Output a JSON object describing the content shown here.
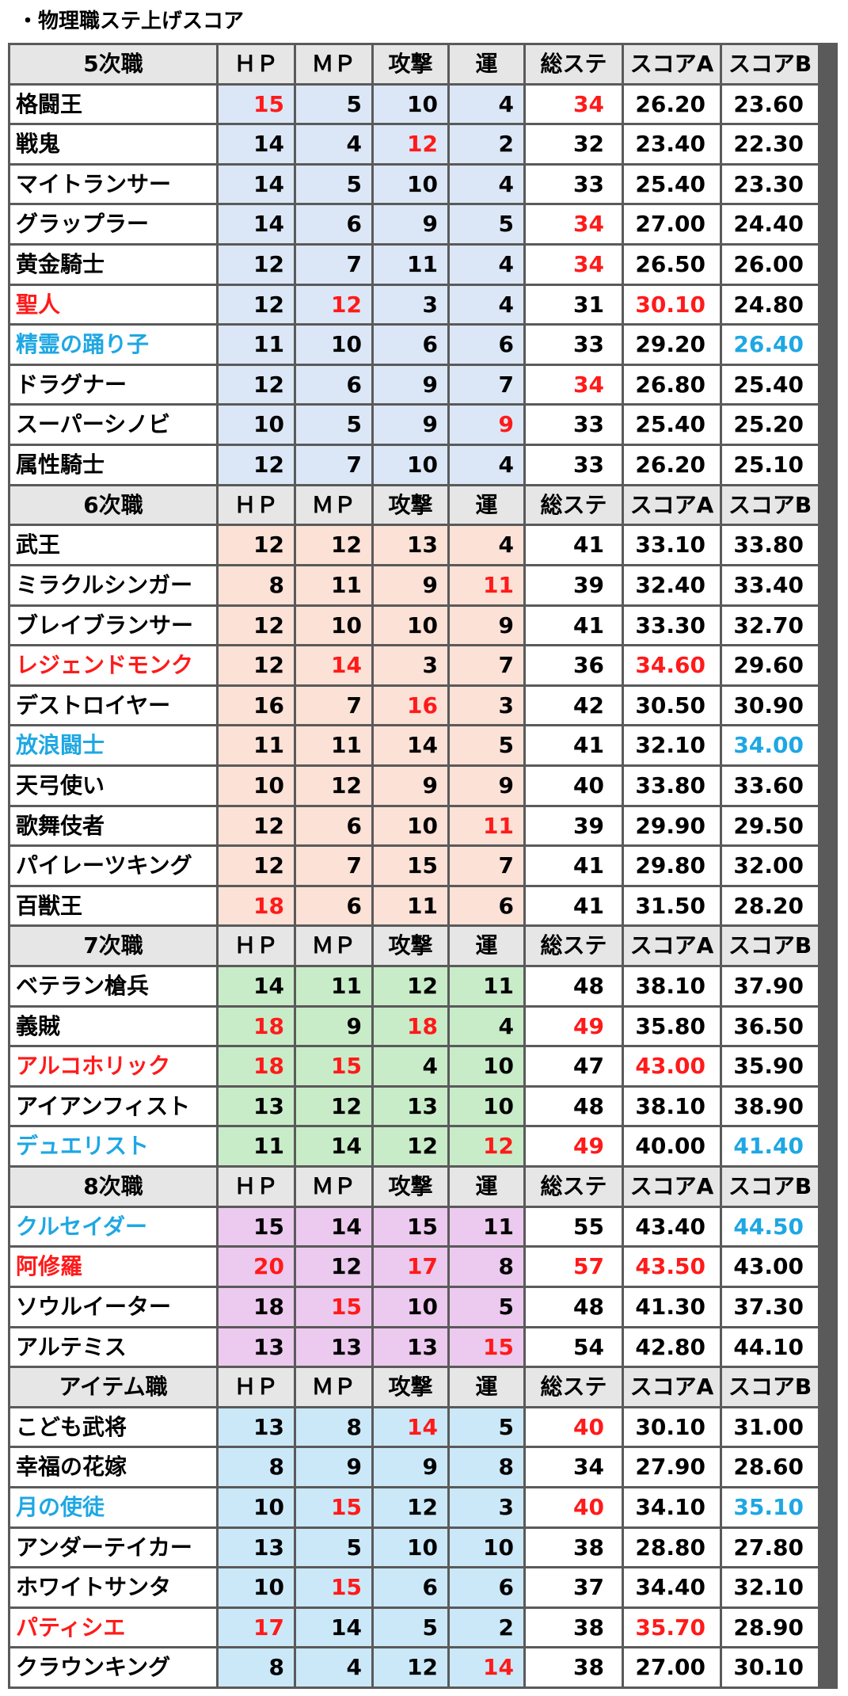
{
  "title": "・物理職ステ上げスコア",
  "colors": {
    "red": "#ff1a1a",
    "blue": "#1ea7e3",
    "header_bg": "#e6e6e6",
    "border": "#5a5a5a"
  },
  "columns": [
    "ＨＰ",
    "ＭＰ",
    "攻撃",
    "運",
    "総ステ",
    "スコアA",
    "スコアB"
  ],
  "sections": [
    {
      "name": "5次職",
      "bg": "#dbe7f6",
      "rows": [
        {
          "name": "格闘王",
          "hp": "15",
          "mp": "5",
          "atk": "10",
          "luck": "4",
          "total": "34",
          "sa": "26.20",
          "sb": "23.60",
          "hl": {
            "hp": "red",
            "total": "red"
          }
        },
        {
          "name": "戦鬼",
          "hp": "14",
          "mp": "4",
          "atk": "12",
          "luck": "2",
          "total": "32",
          "sa": "23.40",
          "sb": "22.30",
          "hl": {
            "atk": "red"
          }
        },
        {
          "name": "マイトランサー",
          "hp": "14",
          "mp": "5",
          "atk": "10",
          "luck": "4",
          "total": "33",
          "sa": "25.40",
          "sb": "23.30",
          "hl": {}
        },
        {
          "name": "グラップラー",
          "hp": "14",
          "mp": "6",
          "atk": "9",
          "luck": "5",
          "total": "34",
          "sa": "27.00",
          "sb": "24.40",
          "hl": {
            "total": "red"
          }
        },
        {
          "name": "黄金騎士",
          "hp": "12",
          "mp": "7",
          "atk": "11",
          "luck": "4",
          "total": "34",
          "sa": "26.50",
          "sb": "26.00",
          "hl": {
            "total": "red"
          }
        },
        {
          "name": "聖人",
          "hp": "12",
          "mp": "12",
          "atk": "3",
          "luck": "4",
          "total": "31",
          "sa": "30.10",
          "sb": "24.80",
          "hl": {
            "name": "red",
            "mp": "red",
            "sa": "red"
          }
        },
        {
          "name": "精霊の踊り子",
          "hp": "11",
          "mp": "10",
          "atk": "6",
          "luck": "6",
          "total": "33",
          "sa": "29.20",
          "sb": "26.40",
          "hl": {
            "name": "blue",
            "sb": "blue"
          }
        },
        {
          "name": "ドラグナー",
          "hp": "12",
          "mp": "6",
          "atk": "9",
          "luck": "7",
          "total": "34",
          "sa": "26.80",
          "sb": "25.40",
          "hl": {
            "total": "red"
          }
        },
        {
          "name": "スーパーシノビ",
          "hp": "10",
          "mp": "5",
          "atk": "9",
          "luck": "9",
          "total": "33",
          "sa": "25.40",
          "sb": "25.20",
          "hl": {
            "luck": "red"
          }
        },
        {
          "name": "属性騎士",
          "hp": "12",
          "mp": "7",
          "atk": "10",
          "luck": "4",
          "total": "33",
          "sa": "26.20",
          "sb": "25.10",
          "hl": {}
        }
      ]
    },
    {
      "name": "6次職",
      "bg": "#fbe1d6",
      "rows": [
        {
          "name": "武王",
          "hp": "12",
          "mp": "12",
          "atk": "13",
          "luck": "4",
          "total": "41",
          "sa": "33.10",
          "sb": "33.80",
          "hl": {}
        },
        {
          "name": "ミラクルシンガー",
          "hp": "8",
          "mp": "11",
          "atk": "9",
          "luck": "11",
          "total": "39",
          "sa": "32.40",
          "sb": "33.40",
          "hl": {
            "luck": "red"
          }
        },
        {
          "name": "ブレイブランサー",
          "hp": "12",
          "mp": "10",
          "atk": "10",
          "luck": "9",
          "total": "41",
          "sa": "33.30",
          "sb": "32.70",
          "hl": {}
        },
        {
          "name": "レジェンドモンク",
          "hp": "12",
          "mp": "14",
          "atk": "3",
          "luck": "7",
          "total": "36",
          "sa": "34.60",
          "sb": "29.60",
          "hl": {
            "name": "red",
            "mp": "red",
            "sa": "red"
          }
        },
        {
          "name": "デストロイヤー",
          "hp": "16",
          "mp": "7",
          "atk": "16",
          "luck": "3",
          "total": "42",
          "sa": "30.50",
          "sb": "30.90",
          "hl": {
            "atk": "red"
          }
        },
        {
          "name": "放浪闘士",
          "hp": "11",
          "mp": "11",
          "atk": "14",
          "luck": "5",
          "total": "41",
          "sa": "32.10",
          "sb": "34.00",
          "hl": {
            "name": "blue",
            "sb": "blue"
          }
        },
        {
          "name": "天弓使い",
          "hp": "10",
          "mp": "12",
          "atk": "9",
          "luck": "9",
          "total": "40",
          "sa": "33.80",
          "sb": "33.60",
          "hl": {}
        },
        {
          "name": "歌舞伎者",
          "hp": "12",
          "mp": "6",
          "atk": "10",
          "luck": "11",
          "total": "39",
          "sa": "29.90",
          "sb": "29.50",
          "hl": {
            "luck": "red"
          }
        },
        {
          "name": "パイレーツキング",
          "hp": "12",
          "mp": "7",
          "atk": "15",
          "luck": "7",
          "total": "41",
          "sa": "29.80",
          "sb": "32.00",
          "hl": {}
        },
        {
          "name": "百獣王",
          "hp": "18",
          "mp": "6",
          "atk": "11",
          "luck": "6",
          "total": "41",
          "sa": "31.50",
          "sb": "28.20",
          "hl": {
            "hp": "red"
          }
        }
      ]
    },
    {
      "name": "7次職",
      "bg": "#c8ecc8",
      "rows": [
        {
          "name": "ベテラン槍兵",
          "hp": "14",
          "mp": "11",
          "atk": "12",
          "luck": "11",
          "total": "48",
          "sa": "38.10",
          "sb": "37.90",
          "hl": {}
        },
        {
          "name": "義賊",
          "hp": "18",
          "mp": "9",
          "atk": "18",
          "luck": "4",
          "total": "49",
          "sa": "35.80",
          "sb": "36.50",
          "hl": {
            "hp": "red",
            "atk": "red",
            "total": "red"
          }
        },
        {
          "name": "アルコホリック",
          "hp": "18",
          "mp": "15",
          "atk": "4",
          "luck": "10",
          "total": "47",
          "sa": "43.00",
          "sb": "35.90",
          "hl": {
            "name": "red",
            "hp": "red",
            "mp": "red",
            "sa": "red"
          }
        },
        {
          "name": "アイアンフィスト",
          "hp": "13",
          "mp": "12",
          "atk": "13",
          "luck": "10",
          "total": "48",
          "sa": "38.10",
          "sb": "38.90",
          "hl": {}
        },
        {
          "name": "デュエリスト",
          "hp": "11",
          "mp": "14",
          "atk": "12",
          "luck": "12",
          "total": "49",
          "sa": "40.00",
          "sb": "41.40",
          "hl": {
            "name": "blue",
            "luck": "red",
            "total": "red",
            "sb": "blue"
          }
        }
      ]
    },
    {
      "name": "8次職",
      "bg": "#ecc9ee",
      "rows": [
        {
          "name": "クルセイダー",
          "hp": "15",
          "mp": "14",
          "atk": "15",
          "luck": "11",
          "total": "55",
          "sa": "43.40",
          "sb": "44.50",
          "hl": {
            "name": "blue",
            "sb": "blue"
          }
        },
        {
          "name": "阿修羅",
          "hp": "20",
          "mp": "12",
          "atk": "17",
          "luck": "8",
          "total": "57",
          "sa": "43.50",
          "sb": "43.00",
          "hl": {
            "name": "red",
            "hp": "red",
            "atk": "red",
            "total": "red",
            "sa": "red"
          }
        },
        {
          "name": "ソウルイーター",
          "hp": "18",
          "mp": "15",
          "atk": "10",
          "luck": "5",
          "total": "48",
          "sa": "41.30",
          "sb": "37.30",
          "hl": {
            "mp": "red"
          }
        },
        {
          "name": "アルテミス",
          "hp": "13",
          "mp": "13",
          "atk": "13",
          "luck": "15",
          "total": "54",
          "sa": "42.80",
          "sb": "44.10",
          "hl": {
            "luck": "red"
          }
        }
      ]
    },
    {
      "name": "アイテム職",
      "bg": "#cbe8f8",
      "rows": [
        {
          "name": "こども武将",
          "hp": "13",
          "mp": "8",
          "atk": "14",
          "luck": "5",
          "total": "40",
          "sa": "30.10",
          "sb": "31.00",
          "hl": {
            "atk": "red",
            "total": "red"
          }
        },
        {
          "name": "幸福の花嫁",
          "hp": "8",
          "mp": "9",
          "atk": "9",
          "luck": "8",
          "total": "34",
          "sa": "27.90",
          "sb": "28.60",
          "hl": {}
        },
        {
          "name": "月の使徒",
          "hp": "10",
          "mp": "15",
          "atk": "12",
          "luck": "3",
          "total": "40",
          "sa": "34.10",
          "sb": "35.10",
          "hl": {
            "name": "blue",
            "mp": "red",
            "total": "red",
            "sb": "blue"
          }
        },
        {
          "name": "アンダーテイカー",
          "hp": "13",
          "mp": "5",
          "atk": "10",
          "luck": "10",
          "total": "38",
          "sa": "28.80",
          "sb": "27.80",
          "hl": {}
        },
        {
          "name": "ホワイトサンタ",
          "hp": "10",
          "mp": "15",
          "atk": "6",
          "luck": "6",
          "total": "37",
          "sa": "34.40",
          "sb": "32.10",
          "hl": {
            "mp": "red"
          }
        },
        {
          "name": "パティシエ",
          "hp": "17",
          "mp": "14",
          "atk": "5",
          "luck": "2",
          "total": "38",
          "sa": "35.70",
          "sb": "28.90",
          "hl": {
            "name": "red",
            "hp": "red",
            "sa": "red"
          }
        },
        {
          "name": "クラウンキング",
          "hp": "8",
          "mp": "4",
          "atk": "12",
          "luck": "14",
          "total": "38",
          "sa": "27.00",
          "sb": "30.10",
          "hl": {
            "luck": "red"
          }
        }
      ]
    }
  ]
}
